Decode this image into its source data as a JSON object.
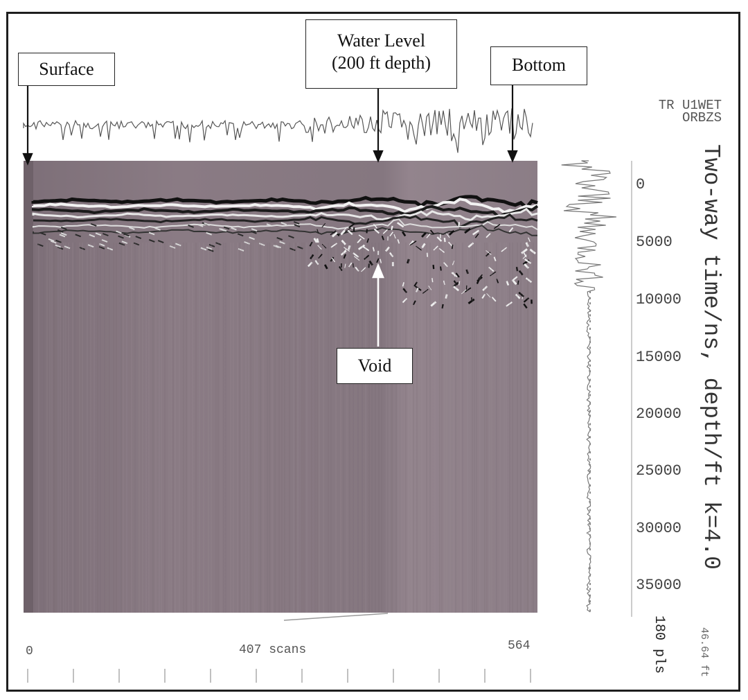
{
  "labels": {
    "surface": "Surface",
    "water_level_line1": "Water Level",
    "water_level_line2": "(200 ft depth)",
    "bottom": "Bottom",
    "void": "Void"
  },
  "trace_name": {
    "line1": "TR U1WET",
    "line2": "ORBZS"
  },
  "x_axis": {
    "start": "0",
    "mid": "407 scans",
    "end": "564"
  },
  "y_axis": {
    "title": "Two-way time/ns, depth/ft k=4.0",
    "ticks": [
      "0",
      "5000",
      "10000",
      "15000",
      "20000",
      "25000",
      "30000",
      "35000"
    ]
  },
  "samples": "180 pls",
  "range": "46.64 ft",
  "colors": {
    "radargram_base": "#8e7e86",
    "frame": "#1e1e1e"
  }
}
